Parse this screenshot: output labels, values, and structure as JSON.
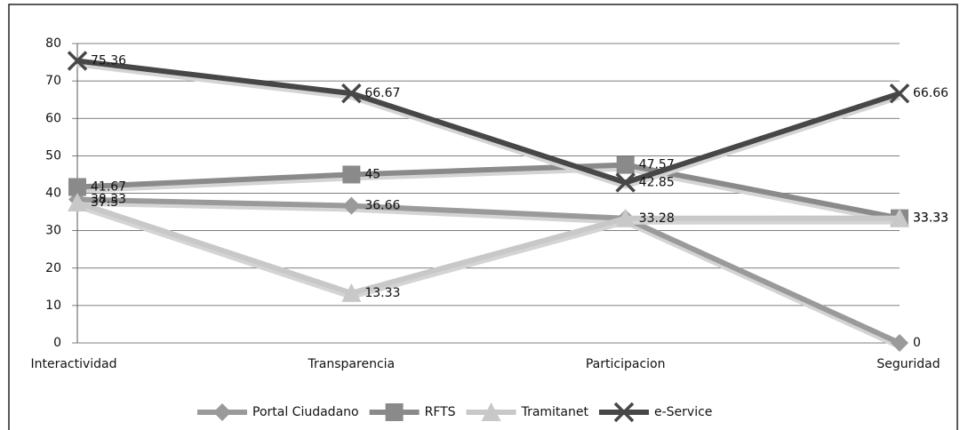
{
  "chart_data": {
    "type": "line",
    "categories": [
      "Interactividad",
      "Transparencia",
      "Participacion",
      "Seguridad"
    ],
    "series": [
      {
        "name": "Portal Ciudadano",
        "color": "#9a9a9a",
        "marker": "diamond",
        "values": [
          38.33,
          36.66,
          33.28,
          0
        ]
      },
      {
        "name": "RFTS",
        "color": "#8a8a8a",
        "marker": "square",
        "values": [
          41.67,
          45,
          47.57,
          33.33
        ]
      },
      {
        "name": "Tramitanet",
        "color": "#c8c8c8",
        "marker": "triangle",
        "values": [
          37.5,
          13.33,
          33.28,
          33.33
        ]
      },
      {
        "name": "e-Service",
        "color": "#474747",
        "marker": "x",
        "values": [
          75.36,
          66.67,
          42.85,
          66.66
        ]
      }
    ],
    "ylim": [
      0,
      80
    ],
    "yticks": [
      0,
      10,
      20,
      30,
      40,
      50,
      60,
      70,
      80
    ],
    "grid": true,
    "legend": "bottom"
  }
}
